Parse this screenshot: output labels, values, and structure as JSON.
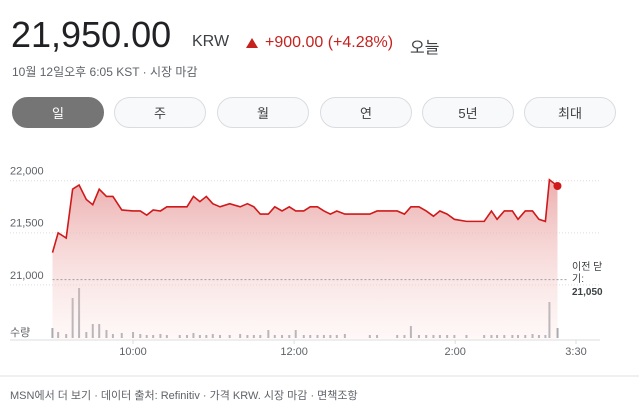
{
  "header": {
    "price": "21,950.00",
    "currency": "KRW",
    "change": "+900.00 (+4.28%)",
    "period": "오늘",
    "timestamp": "10월 12일오후 6:05 KST · 시장 마감"
  },
  "tabs": [
    {
      "label": "일",
      "selected": true
    },
    {
      "label": "주",
      "selected": false
    },
    {
      "label": "월",
      "selected": false
    },
    {
      "label": "연",
      "selected": false
    },
    {
      "label": "5년",
      "selected": false
    },
    {
      "label": "최대",
      "selected": false
    }
  ],
  "chart_data": {
    "type": "line",
    "color": "#d0191a",
    "x": [
      9.0,
      9.07,
      9.17,
      9.25,
      9.33,
      9.42,
      9.5,
      9.58,
      9.67,
      9.75,
      9.86,
      10.0,
      10.09,
      10.17,
      10.25,
      10.34,
      10.42,
      10.58,
      10.67,
      10.75,
      10.83,
      10.91,
      10.99,
      11.08,
      11.2,
      11.33,
      11.42,
      11.5,
      11.58,
      11.68,
      11.76,
      11.85,
      11.94,
      12.02,
      12.12,
      12.2,
      12.29,
      12.37,
      12.45,
      12.53,
      12.63,
      12.94,
      13.03,
      13.28,
      13.37,
      13.45,
      13.55,
      13.64,
      13.73,
      13.81,
      13.9,
      13.99,
      14.14,
      14.36,
      14.45,
      14.52,
      14.61,
      14.71,
      14.78,
      14.87,
      14.96,
      15.04,
      15.12,
      15.17,
      15.27
    ],
    "values": [
      21310,
      21500,
      21450,
      21920,
      21960,
      21820,
      21770,
      21920,
      21850,
      21850,
      21720,
      21710,
      21710,
      21670,
      21720,
      21710,
      21750,
      21750,
      21750,
      21850,
      21800,
      21850,
      21780,
      21750,
      21780,
      21750,
      21780,
      21750,
      21680,
      21680,
      21750,
      21710,
      21750,
      21710,
      21710,
      21750,
      21750,
      21710,
      21680,
      21710,
      21680,
      21680,
      21710,
      21710,
      21680,
      21750,
      21750,
      21710,
      21660,
      21710,
      21680,
      21630,
      21610,
      21610,
      21710,
      21630,
      21710,
      21710,
      21630,
      21710,
      21710,
      21630,
      21610,
      22010,
      21950
    ],
    "volume": {
      "label": "수량",
      "color": "#9aa0a6",
      "ylim": [
        0,
        55
      ],
      "values": [
        10,
        6,
        4,
        40,
        50,
        6,
        14,
        14,
        8,
        4,
        5,
        6,
        4,
        3,
        3,
        4,
        3,
        3,
        3,
        5,
        3,
        3,
        4,
        3,
        3,
        4,
        3,
        3,
        3,
        8,
        3,
        3,
        3,
        8,
        3,
        3,
        3,
        3,
        3,
        3,
        4,
        3,
        3,
        3,
        3,
        12,
        3,
        3,
        3,
        3,
        3,
        3,
        3,
        3,
        3,
        3,
        3,
        3,
        3,
        3,
        4,
        3,
        3,
        36,
        10
      ]
    },
    "previous_close": {
      "label": "이전 닫기:",
      "value": 21050,
      "value_label": "21,050"
    },
    "xlim": [
      9,
      15.5
    ],
    "xticks": [
      {
        "value": 10,
        "label": "10:00"
      },
      {
        "value": 12,
        "label": "12:00"
      },
      {
        "value": 14,
        "label": "2:00"
      },
      {
        "value": 15.5,
        "label": "3:30"
      }
    ],
    "ylim": [
      20470,
      22200
    ],
    "yticks": [
      {
        "value": 21000,
        "label": "21,000"
      },
      {
        "value": 21500,
        "label": "21,500"
      },
      {
        "value": 22000,
        "label": "22,000"
      }
    ],
    "grid": true
  },
  "footer": "MSN에서 더 보기 · 데이터 출처: Refinitiv · 가격 KRW. 시장 마감 · 면책조항"
}
